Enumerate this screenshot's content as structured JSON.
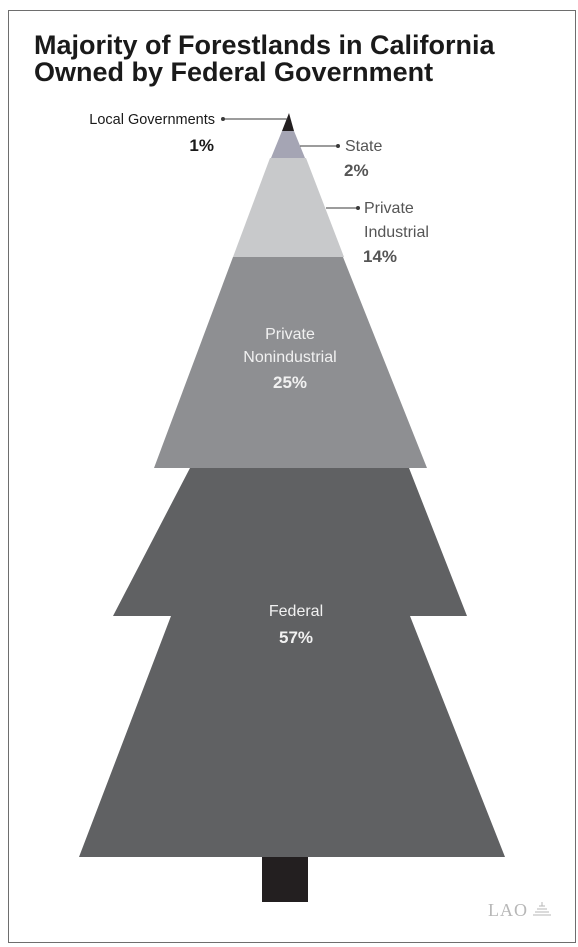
{
  "chart_data": {
    "type": "pie",
    "title_lines": [
      "Majority of Forestlands in California",
      "Owned by Federal Government"
    ],
    "series": [
      {
        "name": "Local Governments",
        "label_lines": [
          "Local Governments"
        ],
        "value_label": "1%",
        "value": 1,
        "color": "#231f20"
      },
      {
        "name": "State",
        "label_lines": [
          "State"
        ],
        "value_label": "2%",
        "value": 2,
        "color": "#a5a5b4"
      },
      {
        "name": "Private Industrial",
        "label_lines": [
          "Private",
          "Industrial"
        ],
        "value_label": "14%",
        "value": 14,
        "color": "#c8c9cb"
      },
      {
        "name": "Private Nonindustrial",
        "label_lines": [
          "Private",
          "Nonindustrial"
        ],
        "value_label": "25%",
        "value": 25,
        "color": "#8e8f92"
      },
      {
        "name": "Federal",
        "label_lines": [
          "Federal"
        ],
        "value_label": "57%",
        "value": 57,
        "color": "#606163"
      }
    ],
    "trunk_color": "#231f20"
  },
  "footer": {
    "logo_text": "LAO"
  }
}
